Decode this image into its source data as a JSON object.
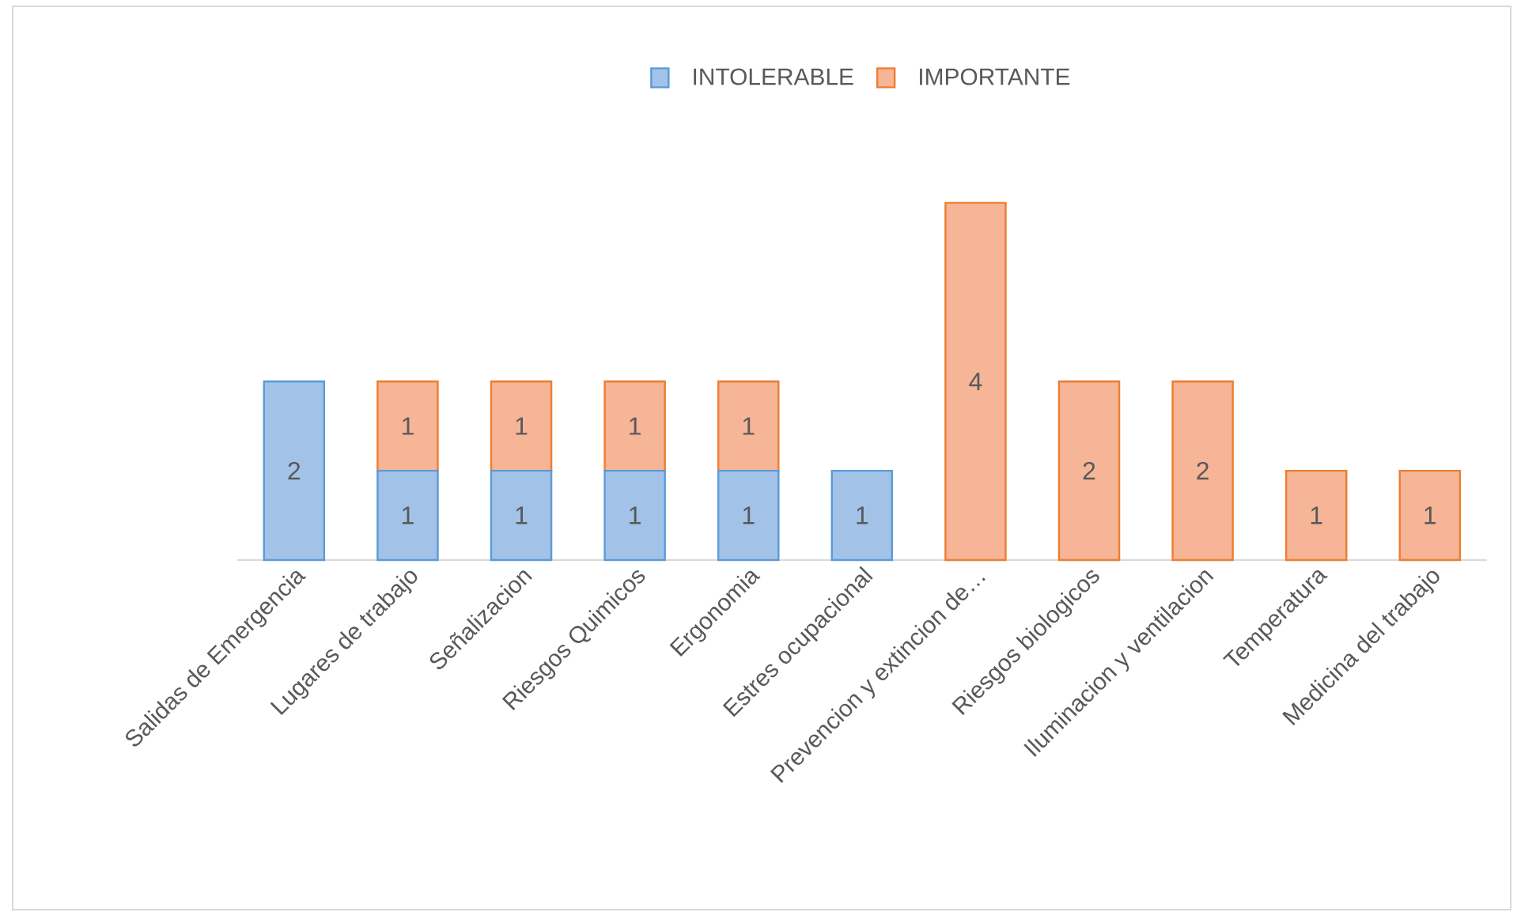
{
  "chart_data": {
    "type": "bar",
    "stacked": true,
    "data_labels": true,
    "legend": "top",
    "categories": [
      "Salidas de Emergencia",
      "Lugares de trabajo",
      "Señalizacion",
      "Riesgos Quimicos",
      "Ergonomia",
      "Estres ocupacional",
      "Prevencion y extincion de…",
      "Riesgos biologicos",
      "Iluminacion y ventilacion",
      "Temperatura",
      "Medicina del trabajo"
    ],
    "series": [
      {
        "name": "INTOLERABLE",
        "color": "#a3c2e8",
        "values": [
          2,
          1,
          1,
          1,
          1,
          1,
          null,
          null,
          null,
          null,
          null
        ]
      },
      {
        "name": "IMPORTANTE",
        "color": "#f5b596",
        "values": [
          null,
          1,
          1,
          1,
          1,
          null,
          4,
          2,
          2,
          1,
          1
        ]
      }
    ]
  }
}
